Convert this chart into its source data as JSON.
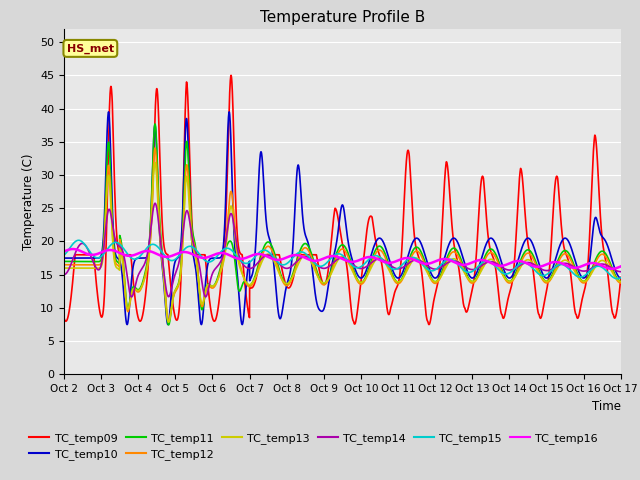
{
  "title": "Temperature Profile B",
  "xlabel": "Time",
  "ylabel": "Temperature (C)",
  "ylim": [
    0,
    52
  ],
  "xlim": [
    0,
    15
  ],
  "background_color": "#d8d8d8",
  "plot_bg_color": "#e8e8e8",
  "annotation_label": "HS_met",
  "series_order": [
    "TC_temp09",
    "TC_temp10",
    "TC_temp11",
    "TC_temp12",
    "TC_temp13",
    "TC_temp14",
    "TC_temp15",
    "TC_temp16"
  ],
  "series": {
    "TC_temp09": {
      "color": "#ff0000",
      "lw": 1.2
    },
    "TC_temp10": {
      "color": "#0000cc",
      "lw": 1.2
    },
    "TC_temp11": {
      "color": "#00cc00",
      "lw": 1.2
    },
    "TC_temp12": {
      "color": "#ff8800",
      "lw": 1.2
    },
    "TC_temp13": {
      "color": "#cccc00",
      "lw": 1.2
    },
    "TC_temp14": {
      "color": "#aa00aa",
      "lw": 1.2
    },
    "TC_temp15": {
      "color": "#00cccc",
      "lw": 1.2
    },
    "TC_temp16": {
      "color": "#ff00ff",
      "lw": 1.8
    }
  },
  "x_ticks": [
    0,
    1,
    2,
    3,
    4,
    5,
    6,
    7,
    8,
    9,
    10,
    11,
    12,
    13,
    14,
    15
  ],
  "x_tick_labels": [
    "Oct 2",
    "Oct 3",
    "Oct 4",
    "Oct 5",
    "Oct 6",
    "Oct 7",
    "Oct 8",
    "Oct 9",
    "Oct 10",
    "Oct 11",
    "Oct 12",
    "Oct 13",
    "Oct 14",
    "Oct 15",
    "Oct 16",
    "Oct 17"
  ],
  "y_ticks": [
    0,
    5,
    10,
    15,
    20,
    25,
    30,
    35,
    40,
    45,
    50
  ],
  "grid_color": "#ffffff",
  "legend_fontsize": 8,
  "title_fontsize": 11
}
